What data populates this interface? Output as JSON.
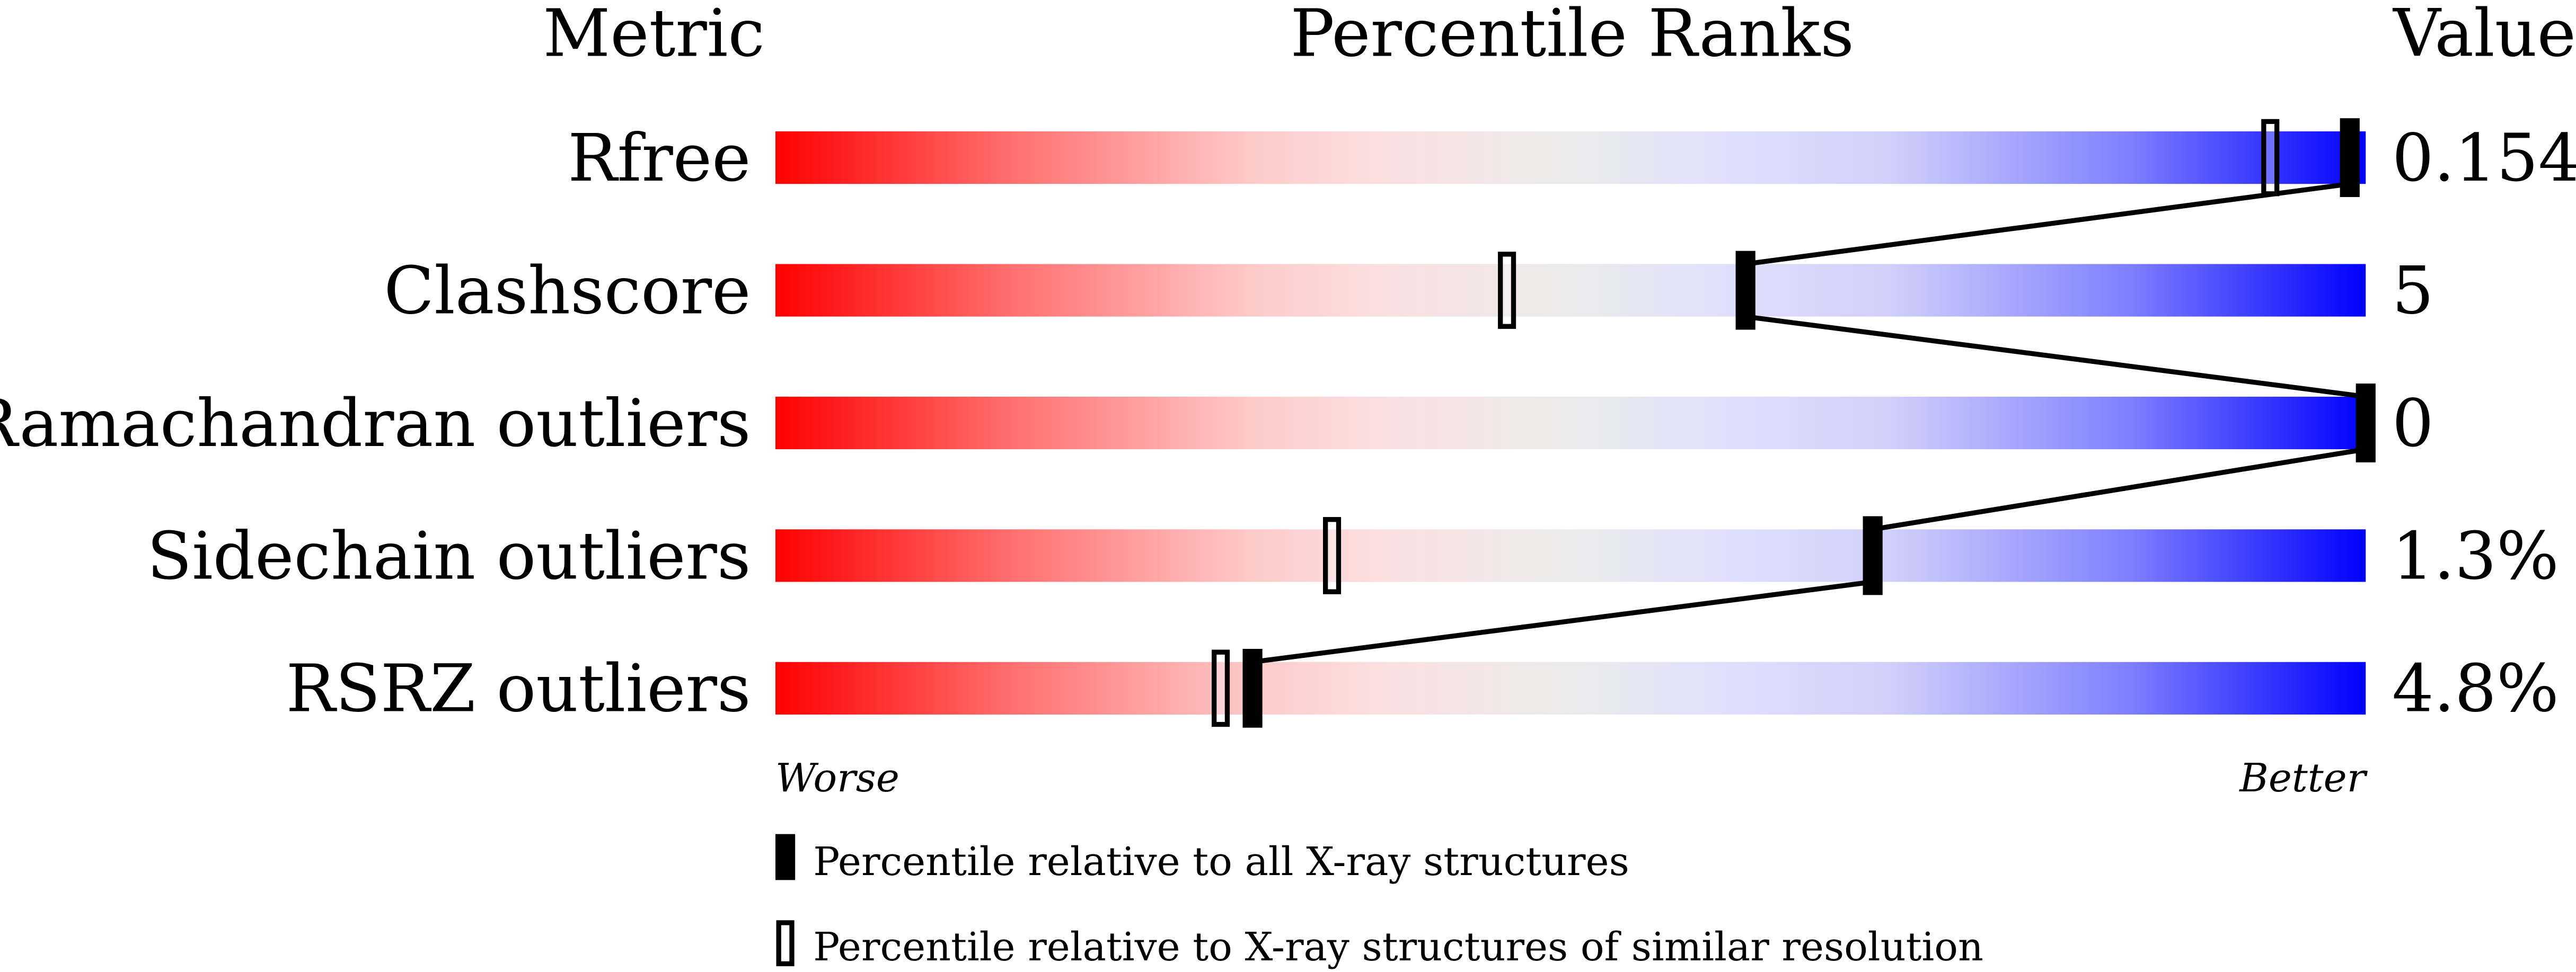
{
  "chart_data": {
    "type": "percentile-slider",
    "headers": {
      "metric": "Metric",
      "ranks": "Percentile Ranks",
      "value": "Value"
    },
    "axis": {
      "left_label": "Worse",
      "right_label": "Better",
      "range": [
        0,
        100
      ]
    },
    "rows": [
      {
        "metric": "Rfree",
        "value": "0.154",
        "percentile_all": 99,
        "percentile_similar": 94
      },
      {
        "metric": "Clashscore",
        "value": "5",
        "percentile_all": 61,
        "percentile_similar": 46
      },
      {
        "metric": "Ramachandran outliers",
        "value": "0",
        "percentile_all": 100,
        "percentile_similar": null
      },
      {
        "metric": "Sidechain outliers",
        "value": "1.3%",
        "percentile_all": 69,
        "percentile_similar": 35
      },
      {
        "metric": "RSRZ outliers",
        "value": "4.8%",
        "percentile_all": 30,
        "percentile_similar": 28
      }
    ],
    "legend": [
      {
        "marker": "filled",
        "label": "Percentile relative to all X-ray structures"
      },
      {
        "marker": "open",
        "label": "Percentile relative to X-ray structures of similar resolution"
      }
    ],
    "colors": {
      "worse": "#ff0000",
      "middle": "#ebebeb",
      "better": "#0000ff",
      "marker": "#000000"
    }
  }
}
